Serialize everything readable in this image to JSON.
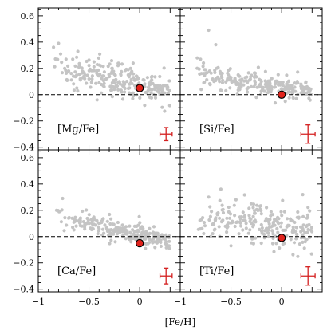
{
  "chart_data": {
    "type": "scatter",
    "xlabel": "[Fe/H]",
    "layout": "2x2 panels, shared x axis",
    "xlim": [
      -1.0,
      0.4
    ],
    "ylim": [
      -0.42,
      0.66
    ],
    "xticks": [
      -1,
      -0.5,
      0
    ],
    "xtick_labels": [
      "−1",
      "−0.5",
      "0"
    ],
    "yticks": [
      -0.4,
      -0.2,
      0,
      0.2,
      0.4,
      0.6
    ],
    "ytick_labels": [
      "−0.4",
      "−0.2",
      "0",
      "0.2",
      "0.4",
      "0.6"
    ],
    "reference_line": 0,
    "colors": {
      "points": "#c4c4c4",
      "sun_fill": "#e0231c",
      "sun_edge": "#000000",
      "error_bar": "#d42020",
      "reference_line": "#000000"
    },
    "panels": [
      {
        "label": "[Mg/Fe]",
        "sun": {
          "x": 0.0,
          "y": 0.05
        },
        "error_bar": {
          "x": 0.26,
          "y": -0.3,
          "xerr": 0.06,
          "yerr": 0.05
        },
        "trend": {
          "x_range": [
            -0.85,
            0.3
          ],
          "y_at_xmin": 0.22,
          "y_at_xmax": 0.03,
          "scatter": 0.085
        },
        "points": [
          [
            -0.85,
            0.36
          ],
          [
            -0.8,
            0.39
          ],
          [
            -0.78,
            0.31
          ],
          [
            -0.74,
            0.2
          ],
          [
            -0.7,
            0.18
          ],
          [
            -0.66,
            0.27
          ],
          [
            -0.6,
            0.21
          ],
          [
            -0.55,
            0.14
          ],
          [
            -0.5,
            0.12
          ],
          [
            -0.45,
            0.25
          ],
          [
            -0.4,
            0.09
          ],
          [
            -0.35,
            0.06
          ],
          [
            -0.3,
            0.14
          ],
          [
            -0.25,
            0.04
          ],
          [
            -0.2,
            0.1
          ],
          [
            -0.15,
            0.02
          ],
          [
            -0.1,
            0.08
          ],
          [
            -0.05,
            0.11
          ],
          [
            0.05,
            0.06
          ],
          [
            0.1,
            -0.02
          ],
          [
            0.15,
            0.04
          ],
          [
            0.2,
            0.0
          ],
          [
            0.25,
            0.07
          ],
          [
            -0.62,
            0.05
          ],
          [
            -0.42,
            -0.04
          ]
        ]
      },
      {
        "label": "[Si/Fe]",
        "sun": {
          "x": 0.0,
          "y": 0.0
        },
        "error_bar": {
          "x": 0.26,
          "y": -0.3,
          "xerr": 0.07,
          "yerr": 0.07
        },
        "trend": {
          "x_range": [
            -0.85,
            0.3
          ],
          "y_at_xmin": 0.16,
          "y_at_xmax": 0.02,
          "scatter": 0.06
        },
        "points": [
          [
            -0.72,
            0.49
          ],
          [
            -0.65,
            0.38
          ],
          [
            -0.8,
            0.27
          ],
          [
            -0.6,
            0.16
          ],
          [
            -0.5,
            0.13
          ],
          [
            -0.4,
            0.09
          ],
          [
            -0.3,
            0.06
          ],
          [
            -0.2,
            0.1
          ],
          [
            -0.1,
            0.04
          ],
          [
            0.05,
            0.01
          ],
          [
            0.1,
            0.05
          ],
          [
            0.2,
            0.02
          ],
          [
            0.25,
            0.06
          ],
          [
            -0.55,
            0.03
          ],
          [
            -0.25,
            -0.02
          ]
        ]
      },
      {
        "label": "[Ca/Fe]",
        "sun": {
          "x": 0.0,
          "y": -0.05
        },
        "error_bar": {
          "x": 0.26,
          "y": -0.3,
          "xerr": 0.06,
          "yerr": 0.06
        },
        "trend": {
          "x_range": [
            -0.85,
            0.3
          ],
          "y_at_xmin": 0.16,
          "y_at_xmax": -0.03,
          "scatter": 0.055
        },
        "points": [
          [
            -0.82,
            0.2
          ],
          [
            -0.76,
            0.29
          ],
          [
            -0.7,
            0.14
          ],
          [
            -0.6,
            0.12
          ],
          [
            -0.5,
            0.1
          ],
          [
            -0.4,
            0.06
          ],
          [
            -0.3,
            0.05
          ],
          [
            -0.2,
            0.03
          ],
          [
            -0.1,
            -0.02
          ],
          [
            0.05,
            -0.01
          ],
          [
            0.15,
            -0.04
          ],
          [
            0.25,
            -0.02
          ]
        ]
      },
      {
        "label": "[Ti/Fe]",
        "sun": {
          "x": 0.0,
          "y": -0.01
        },
        "error_bar": {
          "x": 0.26,
          "y": -0.3,
          "xerr": 0.07,
          "yerr": 0.07
        },
        "trend": {
          "x_range": [
            -0.85,
            0.3
          ],
          "y_at_xmin": 0.15,
          "y_at_xmax": 0.05,
          "scatter": 0.1
        },
        "points": [
          [
            -0.72,
            0.3
          ],
          [
            -0.6,
            0.36
          ],
          [
            -0.45,
            0.28
          ],
          [
            -0.3,
            0.25
          ],
          [
            -0.15,
            0.22
          ],
          [
            -0.7,
            0.0
          ],
          [
            -0.5,
            -0.07
          ],
          [
            -0.2,
            -0.05
          ],
          [
            0.1,
            0.12
          ],
          [
            0.2,
            0.07
          ],
          [
            0.25,
            0.14
          ],
          [
            -0.35,
            0.1
          ]
        ]
      }
    ]
  }
}
